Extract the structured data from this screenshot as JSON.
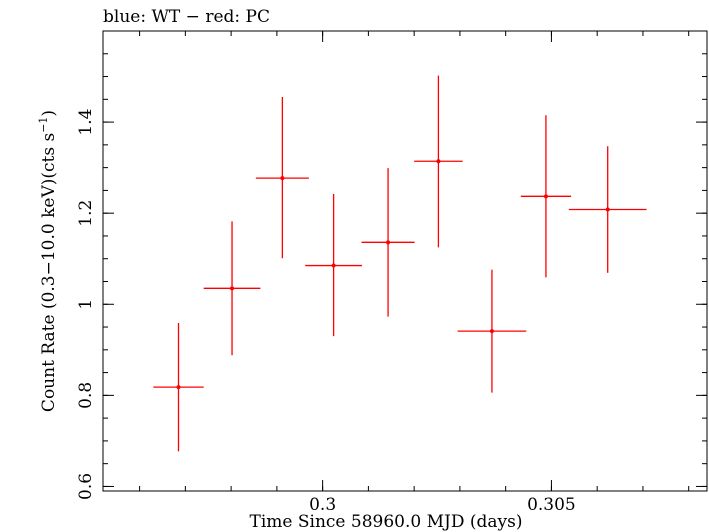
{
  "chart_data": {
    "type": "scatter",
    "title": "blue: WT − red: PC",
    "xlabel": "Time Since 58960.0 MJD (days)",
    "ylabel_main": "Count Rate (0.3−10.0 keV)(cts s",
    "ylabel_sup": "−1",
    "ylabel_close": ")",
    "xlim": [
      0.2952,
      0.3084
    ],
    "ylim": [
      0.59,
      1.6
    ],
    "xticks": [
      {
        "value": 0.3,
        "label": "0.3"
      },
      {
        "value": 0.305,
        "label": "0.305"
      }
    ],
    "x_minor_step": 0.001,
    "yticks": [
      {
        "value": 0.6,
        "label": "0.6"
      },
      {
        "value": 0.8,
        "label": "0.8"
      },
      {
        "value": 1.0,
        "label": "1"
      },
      {
        "value": 1.2,
        "label": "1.2"
      },
      {
        "value": 1.4,
        "label": "1.4"
      }
    ],
    "y_minor_step": 0.05,
    "grid": false,
    "colors": {
      "PC": "#ff0000",
      "axes": "#000000"
    },
    "series": [
      {
        "name": "PC",
        "points": [
          {
            "x": 0.29685,
            "xerr": 0.00055,
            "y": 0.818,
            "yerr_low": 0.141,
            "yerr_high": 0.141
          },
          {
            "x": 0.29802,
            "xerr": 0.00062,
            "y": 1.035,
            "yerr_low": 0.147,
            "yerr_high": 0.147
          },
          {
            "x": 0.29912,
            "xerr": 0.00058,
            "y": 1.277,
            "yerr_low": 0.176,
            "yerr_high": 0.178
          },
          {
            "x": 0.30024,
            "xerr": 0.00062,
            "y": 1.085,
            "yerr_low": 0.155,
            "yerr_high": 0.157
          },
          {
            "x": 0.30143,
            "xerr": 0.00058,
            "y": 1.136,
            "yerr_low": 0.163,
            "yerr_high": 0.163
          },
          {
            "x": 0.30253,
            "xerr": 0.00053,
            "y": 1.314,
            "yerr_low": 0.189,
            "yerr_high": 0.188
          },
          {
            "x": 0.3037,
            "xerr": 0.00075,
            "y": 0.941,
            "yerr_low": 0.135,
            "yerr_high": 0.135
          },
          {
            "x": 0.30488,
            "xerr": 0.00055,
            "y": 1.237,
            "yerr_low": 0.178,
            "yerr_high": 0.178
          },
          {
            "x": 0.30623,
            "xerr": 0.00085,
            "y": 1.208,
            "yerr_low": 0.139,
            "yerr_high": 0.139
          }
        ]
      }
    ]
  }
}
